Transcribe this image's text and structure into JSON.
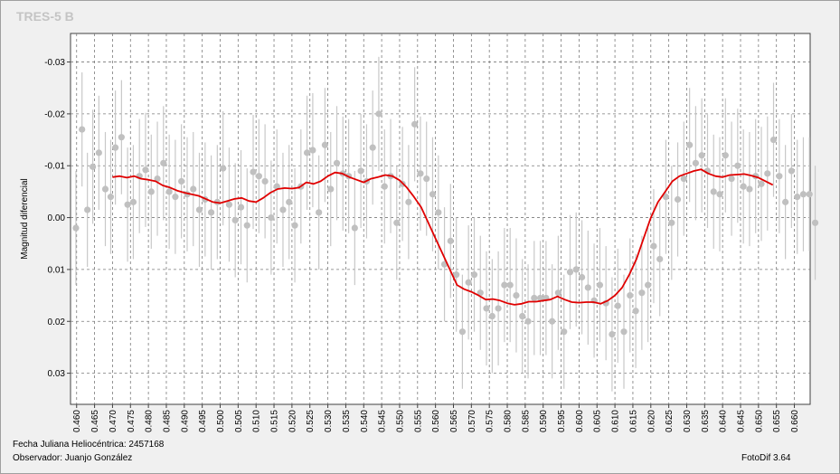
{
  "title": "TRES-5 B",
  "footer": {
    "jd": "Fecha Juliana Heliocéntrica: 2457168",
    "observer": "Observador: Juanjo González",
    "version": "FotoDif 3.64"
  },
  "colors": {
    "points": "#c0c0c0",
    "errorbars": "#c8c8c8",
    "fit": "#e00000",
    "grid": "#7a7a7a",
    "title": "#c4c4c4"
  },
  "chart_data": {
    "type": "scatter",
    "ylabel": "Magnitud diferencial",
    "xlabel": "",
    "xlim": [
      0.4583,
      0.6644
    ],
    "ylim": [
      0.036,
      -0.0355
    ],
    "y_inverted": true,
    "grid": true,
    "x_ticks": [
      "0.460",
      "0.465",
      "0.470",
      "0.475",
      "0.480",
      "0.485",
      "0.490",
      "0.495",
      "0.500",
      "0.505",
      "0.510",
      "0.515",
      "0.520",
      "0.525",
      "0.530",
      "0.535",
      "0.540",
      "0.545",
      "0.550",
      "0.555",
      "0.560",
      "0.565",
      "0.570",
      "0.575",
      "0.580",
      "0.585",
      "0.590",
      "0.595",
      "0.600",
      "0.605",
      "0.610",
      "0.615",
      "0.620",
      "0.625",
      "0.630",
      "0.635",
      "0.640",
      "0.645",
      "0.650",
      "0.655",
      "0.660"
    ],
    "y_ticks": [
      "-0.03",
      "-0.02",
      "-0.01",
      "0.00",
      "0.01",
      "0.02",
      "0.03"
    ],
    "series": [
      {
        "type": "scatter_errorbar",
        "points": [
          [
            0.4598,
            0.002,
            0.011
          ],
          [
            0.4615,
            -0.017,
            0.011
          ],
          [
            0.463,
            -0.0015,
            0.011
          ],
          [
            0.4645,
            -0.0098,
            0.011
          ],
          [
            0.4662,
            -0.0125,
            0.011
          ],
          [
            0.468,
            -0.0055,
            0.011
          ],
          [
            0.4695,
            -0.004,
            0.011
          ],
          [
            0.4708,
            -0.0135,
            0.011
          ],
          [
            0.4725,
            -0.0155,
            0.011
          ],
          [
            0.4742,
            -0.0025,
            0.011
          ],
          [
            0.4758,
            -0.003,
            0.011
          ],
          [
            0.4775,
            -0.008,
            0.011
          ],
          [
            0.4792,
            -0.0092,
            0.011
          ],
          [
            0.4808,
            -0.005,
            0.011
          ],
          [
            0.4825,
            -0.0075,
            0.011
          ],
          [
            0.4842,
            -0.0105,
            0.011
          ],
          [
            0.4858,
            -0.005,
            0.011
          ],
          [
            0.4875,
            -0.004,
            0.011
          ],
          [
            0.4892,
            -0.007,
            0.011
          ],
          [
            0.4908,
            -0.0045,
            0.011
          ],
          [
            0.4925,
            -0.0055,
            0.011
          ],
          [
            0.4942,
            -0.0015,
            0.011
          ],
          [
            0.4958,
            -0.0035,
            0.011
          ],
          [
            0.4975,
            -0.001,
            0.011
          ],
          [
            0.4992,
            -0.003,
            0.011
          ],
          [
            0.5008,
            -0.0095,
            0.011
          ],
          [
            0.5025,
            -0.0025,
            0.011
          ],
          [
            0.5042,
            0.0005,
            0.011
          ],
          [
            0.5058,
            -0.002,
            0.011
          ],
          [
            0.5075,
            0.0015,
            0.011
          ],
          [
            0.5092,
            -0.0088,
            0.011
          ],
          [
            0.5108,
            -0.008,
            0.011
          ],
          [
            0.5125,
            -0.007,
            0.011
          ],
          [
            0.5142,
            0.0,
            0.011
          ],
          [
            0.5158,
            -0.006,
            0.011
          ],
          [
            0.5175,
            -0.0015,
            0.011
          ],
          [
            0.5192,
            -0.003,
            0.011
          ],
          [
            0.5208,
            0.0015,
            0.011
          ],
          [
            0.5225,
            -0.006,
            0.011
          ],
          [
            0.5242,
            -0.0125,
            0.011
          ],
          [
            0.5258,
            -0.013,
            0.011
          ],
          [
            0.5275,
            -0.001,
            0.011
          ],
          [
            0.5292,
            -0.014,
            0.011
          ],
          [
            0.5308,
            -0.0055,
            0.011
          ],
          [
            0.5325,
            -0.0105,
            0.011
          ],
          [
            0.5342,
            -0.0085,
            0.011
          ],
          [
            0.5358,
            -0.008,
            0.011
          ],
          [
            0.5375,
            0.002,
            0.011
          ],
          [
            0.5392,
            -0.009,
            0.011
          ],
          [
            0.5408,
            -0.007,
            0.011
          ],
          [
            0.5425,
            -0.0135,
            0.011
          ],
          [
            0.5442,
            -0.02,
            0.011
          ],
          [
            0.5458,
            -0.006,
            0.011
          ],
          [
            0.5475,
            -0.008,
            0.011
          ],
          [
            0.5492,
            0.001,
            0.011
          ],
          [
            0.5508,
            -0.0065,
            0.011
          ],
          [
            0.5525,
            -0.003,
            0.011
          ],
          [
            0.5542,
            -0.018,
            0.011
          ],
          [
            0.5558,
            -0.0085,
            0.011
          ],
          [
            0.5575,
            -0.0075,
            0.011
          ],
          [
            0.5592,
            -0.0045,
            0.011
          ],
          [
            0.5608,
            -0.001,
            0.011
          ],
          [
            0.5625,
            0.009,
            0.011
          ],
          [
            0.5642,
            0.0045,
            0.011
          ],
          [
            0.5658,
            0.011,
            0.011
          ],
          [
            0.5675,
            0.022,
            0.011
          ],
          [
            0.5692,
            0.0125,
            0.011
          ],
          [
            0.5708,
            0.011,
            0.011
          ],
          [
            0.5725,
            0.0145,
            0.011
          ],
          [
            0.5742,
            0.0175,
            0.011
          ],
          [
            0.5758,
            0.019,
            0.011
          ],
          [
            0.5775,
            0.0175,
            0.011
          ],
          [
            0.5792,
            0.013,
            0.011
          ],
          [
            0.5808,
            0.013,
            0.011
          ],
          [
            0.5825,
            0.015,
            0.011
          ],
          [
            0.5842,
            0.019,
            0.011
          ],
          [
            0.5858,
            0.02,
            0.011
          ],
          [
            0.5875,
            0.0155,
            0.011
          ],
          [
            0.5892,
            0.0155,
            0.011
          ],
          [
            0.5908,
            0.0155,
            0.011
          ],
          [
            0.5925,
            0.02,
            0.011
          ],
          [
            0.5942,
            0.0145,
            0.011
          ],
          [
            0.5958,
            0.022,
            0.011
          ],
          [
            0.5975,
            0.0105,
            0.011
          ],
          [
            0.5992,
            0.01,
            0.011
          ],
          [
            0.6008,
            0.0115,
            0.011
          ],
          [
            0.6025,
            0.0135,
            0.011
          ],
          [
            0.6042,
            0.016,
            0.011
          ],
          [
            0.6058,
            0.013,
            0.011
          ],
          [
            0.6075,
            0.0165,
            0.011
          ],
          [
            0.6092,
            0.0225,
            0.011
          ],
          [
            0.6108,
            0.017,
            0.011
          ],
          [
            0.6125,
            0.022,
            0.011
          ],
          [
            0.6142,
            0.015,
            0.011
          ],
          [
            0.6158,
            0.018,
            0.011
          ],
          [
            0.6175,
            0.0145,
            0.011
          ],
          [
            0.6192,
            0.013,
            0.011
          ],
          [
            0.6208,
            0.0055,
            0.011
          ],
          [
            0.6225,
            0.008,
            0.011
          ],
          [
            0.6242,
            -0.004,
            0.011
          ],
          [
            0.6258,
            0.001,
            0.011
          ],
          [
            0.6275,
            -0.0035,
            0.011
          ],
          [
            0.6292,
            -0.0075,
            0.011
          ],
          [
            0.6308,
            -0.014,
            0.011
          ],
          [
            0.6325,
            -0.0105,
            0.011
          ],
          [
            0.6342,
            -0.012,
            0.011
          ],
          [
            0.6358,
            -0.009,
            0.011
          ],
          [
            0.6375,
            -0.005,
            0.011
          ],
          [
            0.6392,
            -0.0045,
            0.011
          ],
          [
            0.6408,
            -0.012,
            0.011
          ],
          [
            0.6425,
            -0.0075,
            0.011
          ],
          [
            0.6442,
            -0.01,
            0.011
          ],
          [
            0.6458,
            -0.006,
            0.011
          ],
          [
            0.6475,
            -0.0055,
            0.011
          ],
          [
            0.6492,
            -0.008,
            0.011
          ],
          [
            0.6508,
            -0.0065,
            0.011
          ],
          [
            0.6525,
            -0.0085,
            0.011
          ],
          [
            0.6542,
            -0.015,
            0.011
          ],
          [
            0.6558,
            -0.008,
            0.011
          ],
          [
            0.6575,
            -0.003,
            0.011
          ],
          [
            0.6592,
            -0.009,
            0.011
          ],
          [
            0.6608,
            -0.004,
            0.011
          ],
          [
            0.6625,
            -0.0045,
            0.011
          ],
          [
            0.6642,
            -0.0045,
            0.011
          ],
          [
            0.6658,
            0.001,
            0.011
          ]
        ]
      },
      {
        "type": "line",
        "x": [
          0.47,
          0.472,
          0.474,
          0.476,
          0.478,
          0.48,
          0.482,
          0.484,
          0.486,
          0.488,
          0.49,
          0.492,
          0.494,
          0.496,
          0.498,
          0.5,
          0.502,
          0.504,
          0.506,
          0.508,
          0.51,
          0.512,
          0.514,
          0.516,
          0.518,
          0.52,
          0.522,
          0.524,
          0.526,
          0.528,
          0.53,
          0.532,
          0.534,
          0.536,
          0.538,
          0.54,
          0.542,
          0.544,
          0.546,
          0.548,
          0.55,
          0.552,
          0.554,
          0.556,
          0.558,
          0.56,
          0.562,
          0.564,
          0.566,
          0.568,
          0.57,
          0.572,
          0.574,
          0.576,
          0.578,
          0.58,
          0.582,
          0.584,
          0.586,
          0.588,
          0.59,
          0.592,
          0.594,
          0.596,
          0.598,
          0.6,
          0.602,
          0.604,
          0.606,
          0.608,
          0.61,
          0.612,
          0.614,
          0.616,
          0.618,
          0.62,
          0.622,
          0.624,
          0.626,
          0.628,
          0.63,
          0.632,
          0.634,
          0.636,
          0.638,
          0.64,
          0.642,
          0.644,
          0.646,
          0.648,
          0.65,
          0.652,
          0.654
        ],
        "y": [
          -0.0078,
          -0.008,
          -0.0077,
          -0.008,
          -0.0075,
          -0.0073,
          -0.007,
          -0.0062,
          -0.0058,
          -0.0052,
          -0.0048,
          -0.0045,
          -0.0042,
          -0.0036,
          -0.003,
          -0.0028,
          -0.0032,
          -0.0036,
          -0.0038,
          -0.0032,
          -0.003,
          -0.0038,
          -0.0048,
          -0.0055,
          -0.0057,
          -0.0056,
          -0.0058,
          -0.0068,
          -0.0065,
          -0.007,
          -0.008,
          -0.0087,
          -0.0085,
          -0.0078,
          -0.0073,
          -0.0068,
          -0.0075,
          -0.0078,
          -0.0082,
          -0.008,
          -0.0072,
          -0.0058,
          -0.004,
          -0.002,
          0.001,
          0.004,
          0.007,
          0.01,
          0.013,
          0.0138,
          0.0143,
          0.015,
          0.0158,
          0.0157,
          0.016,
          0.0165,
          0.0168,
          0.0166,
          0.0162,
          0.0162,
          0.016,
          0.0158,
          0.0152,
          0.0158,
          0.0163,
          0.0164,
          0.0163,
          0.0163,
          0.0166,
          0.016,
          0.015,
          0.0135,
          0.011,
          0.008,
          0.004,
          0.0,
          -0.003,
          -0.005,
          -0.007,
          -0.008,
          -0.0085,
          -0.009,
          -0.0093,
          -0.0085,
          -0.008,
          -0.0078,
          -0.0082,
          -0.0083,
          -0.0084,
          -0.0081,
          -0.0077,
          -0.007,
          -0.0063
        ]
      }
    ]
  }
}
